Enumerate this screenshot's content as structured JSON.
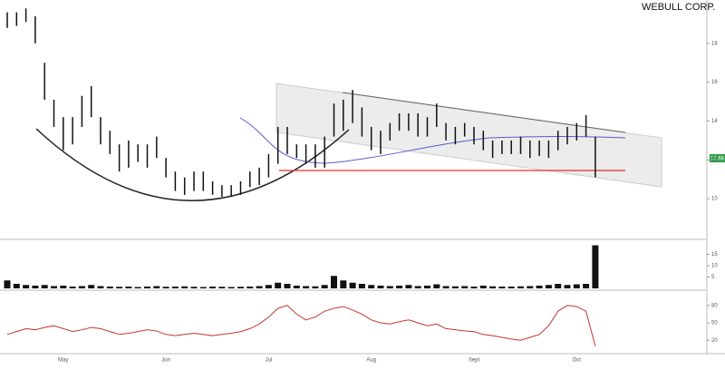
{
  "title": "WEBULL CORP.",
  "last_price_label": "12.66",
  "chart_data": [
    {
      "type": "hilo",
      "color": "#111111",
      "categories": [
        null,
        null,
        null,
        null,
        null,
        null,
        "May",
        null,
        null,
        null,
        null,
        null,
        null,
        null,
        null,
        null,
        null,
        "Jun",
        null,
        null,
        null,
        null,
        null,
        null,
        null,
        null,
        null,
        null,
        "Jul",
        null,
        null,
        null,
        null,
        null,
        null,
        null,
        null,
        null,
        null,
        "Aug",
        null,
        null,
        null,
        null,
        null,
        null,
        null,
        null,
        null,
        null,
        "Sept",
        null,
        null,
        null,
        null,
        null,
        null,
        null,
        null,
        null,
        null,
        "Oct",
        null,
        null
      ],
      "high": [
        19.6,
        19.6,
        19.8,
        19.4,
        17.0,
        15.1,
        14.2,
        14.2,
        15.3,
        15.8,
        14.2,
        13.5,
        12.8,
        13.0,
        12.8,
        12.8,
        13.2,
        12.1,
        11.4,
        11.1,
        11.4,
        11.4,
        10.9,
        10.7,
        10.7,
        10.9,
        11.4,
        11.6,
        12.3,
        13.7,
        13.7,
        12.8,
        12.8,
        12.8,
        13.2,
        14.9,
        15.1,
        15.6,
        14.7,
        13.7,
        13.5,
        13.9,
        14.4,
        14.4,
        14.4,
        14.2,
        14.9,
        13.9,
        13.7,
        13.9,
        13.7,
        13.5,
        13.0,
        13.0,
        13.0,
        13.2,
        13.0,
        13.0,
        13.0,
        13.5,
        13.7,
        13.9,
        14.3,
        13.2
      ],
      "low": [
        18.8,
        18.9,
        19.1,
        18.0,
        15.1,
        13.7,
        12.5,
        12.8,
        13.7,
        14.2,
        12.8,
        12.3,
        11.4,
        11.6,
        11.9,
        11.6,
        12.1,
        11.1,
        10.4,
        10.2,
        10.4,
        10.4,
        10.2,
        10.1,
        10.1,
        10.2,
        10.6,
        10.7,
        11.1,
        11.8,
        12.3,
        12.1,
        11.8,
        11.6,
        11.6,
        13.2,
        13.5,
        13.9,
        13.2,
        12.5,
        12.3,
        13.0,
        13.5,
        13.5,
        13.2,
        13.2,
        13.7,
        13.0,
        12.8,
        13.2,
        12.8,
        12.5,
        12.1,
        12.3,
        12.3,
        12.3,
        12.1,
        12.2,
        12.1,
        12.5,
        12.8,
        13.0,
        13.2,
        11.1
      ],
      "ylim": [
        8,
        20
      ],
      "yticks": [
        10,
        12,
        14,
        16,
        18
      ]
    },
    {
      "type": "bar",
      "color": "#111111",
      "values": [
        3.5,
        2.0,
        1.5,
        1.2,
        1.5,
        1.0,
        1.2,
        0.8,
        1.0,
        1.5,
        1.0,
        0.8,
        0.7,
        0.8,
        0.6,
        0.8,
        1.0,
        0.7,
        0.8,
        0.9,
        0.7,
        0.6,
        0.8,
        0.7,
        0.6,
        0.7,
        0.8,
        1.0,
        1.5,
        2.5,
        2.0,
        1.2,
        1.0,
        0.9,
        1.5,
        5.5,
        3.5,
        2.5,
        2.0,
        1.5,
        1.2,
        1.0,
        1.2,
        1.5,
        1.0,
        1.2,
        1.8,
        1.0,
        0.9,
        1.0,
        0.8,
        1.2,
        0.9,
        0.8,
        0.8,
        0.9,
        1.0,
        1.2,
        1.5,
        2.0,
        1.5,
        1.8,
        2.0,
        19.0
      ],
      "ylim": [
        0,
        20
      ],
      "yticks": [
        5,
        10,
        15
      ]
    },
    {
      "type": "line",
      "color": "#c0392b",
      "values": [
        30,
        35,
        40,
        38,
        42,
        45,
        40,
        35,
        38,
        42,
        40,
        35,
        30,
        32,
        35,
        38,
        36,
        30,
        28,
        30,
        32,
        30,
        28,
        30,
        32,
        35,
        40,
        48,
        60,
        75,
        80,
        65,
        55,
        60,
        70,
        75,
        78,
        72,
        65,
        55,
        50,
        48,
        52,
        55,
        50,
        45,
        48,
        40,
        38,
        36,
        35,
        30,
        28,
        25,
        22,
        20,
        25,
        30,
        45,
        70,
        80,
        78,
        70,
        10
      ],
      "ylim": [
        0,
        100
      ],
      "yticks": [
        20,
        50,
        80
      ]
    }
  ]
}
